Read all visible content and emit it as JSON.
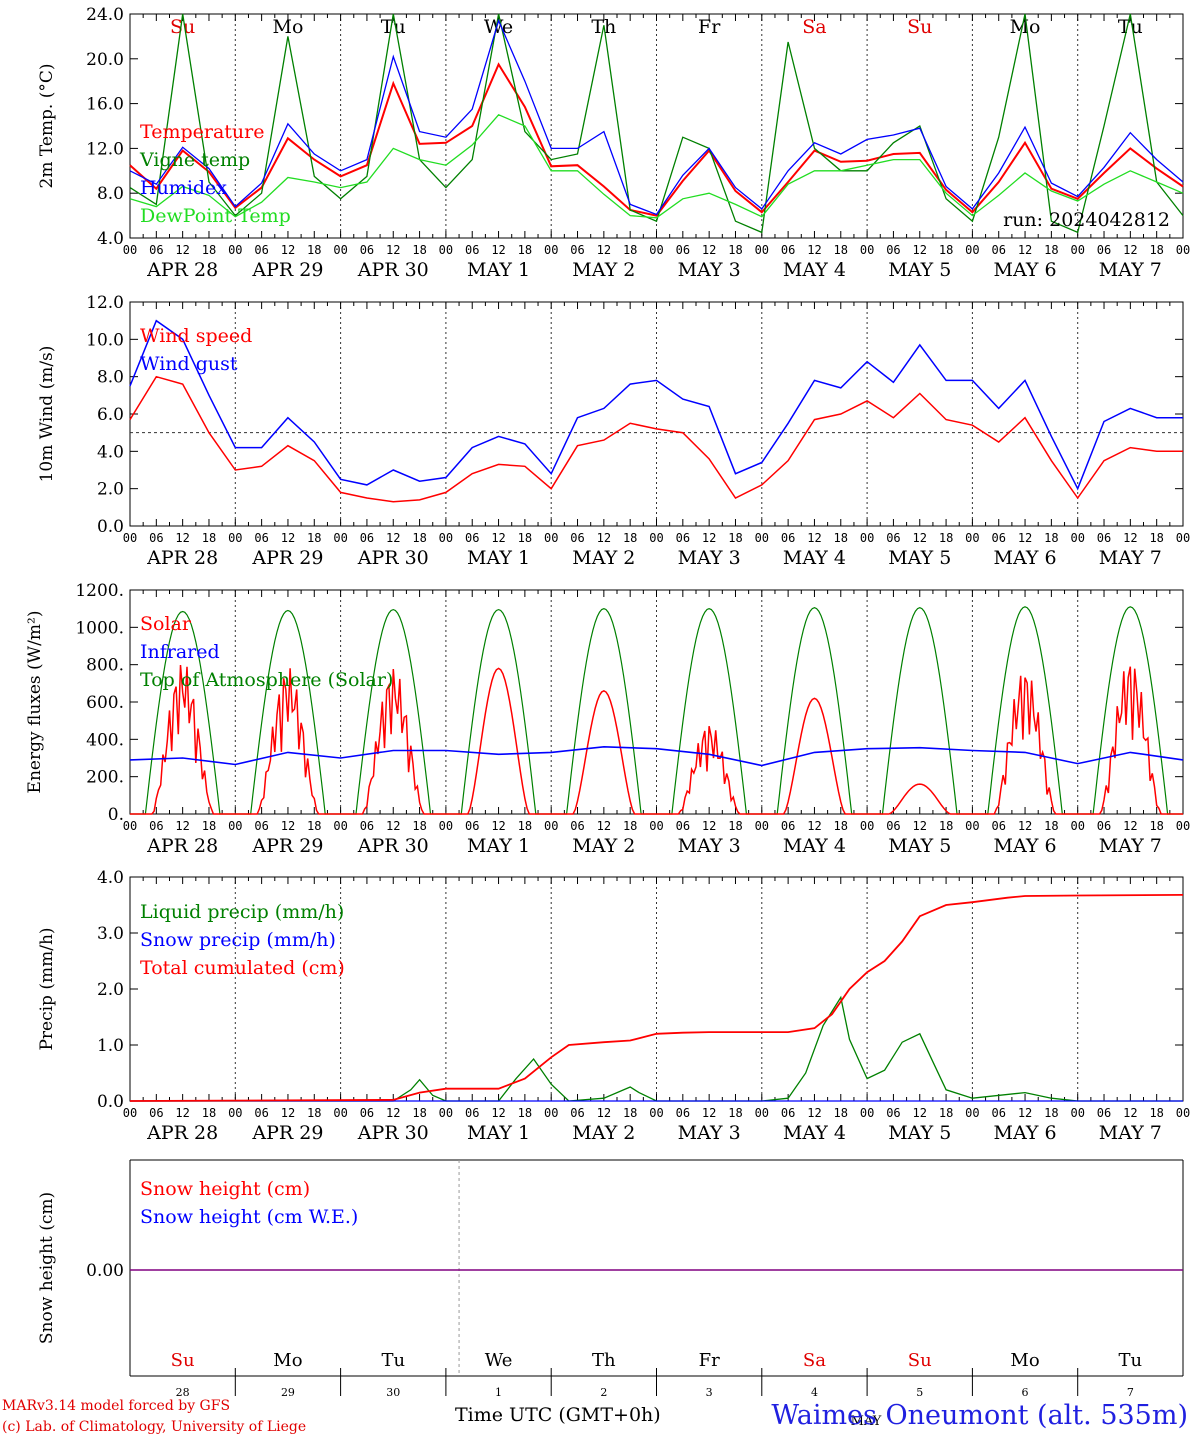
{
  "footer": {
    "model": "MARv3.14 model forced by GFS",
    "credit": "(c) Lab. of Climatology, University of Liege",
    "time_axis": "Time UTC (GMT+0h)",
    "station": "Waimes Oneumont (alt. 535m)"
  },
  "colors": {
    "red": "#ff0000",
    "green": "#008000",
    "blue": "#0000ff",
    "lightgreen": "#22dd22",
    "purple": "#800080"
  },
  "days": {
    "weekdays": [
      "Su",
      "Mo",
      "Tu",
      "We",
      "Th",
      "Fr",
      "Sa",
      "Su",
      "Mo",
      "Tu"
    ],
    "weekend_flags": [
      true,
      false,
      false,
      false,
      false,
      false,
      true,
      true,
      false,
      false
    ],
    "dates": [
      "APR 28",
      "APR 29",
      "APR 30",
      "MAY  1",
      "MAY  2",
      "MAY  3",
      "MAY  4",
      "MAY  5",
      "MAY  6",
      "MAY  7"
    ],
    "day_numbers": [
      "28",
      "29",
      "30",
      "1",
      "2",
      "3",
      "4",
      "5",
      "6",
      "7"
    ],
    "hour_ticks": [
      "00",
      "06",
      "12",
      "18"
    ],
    "final_tick": "00",
    "month_label": "MAY"
  },
  "chart_data": [
    {
      "type": "line",
      "ylabel": "2m Temp. (°C)",
      "ylim": [
        4.0,
        24.0
      ],
      "yticks": [
        "4.0",
        "8.0",
        "12.0",
        "16.0",
        "20.0",
        "24.0"
      ],
      "x_unit": "hours since APR 28 00 UTC",
      "annotation": "run: 2024042812",
      "grid": "dotted vertical at midnight",
      "series": [
        {
          "name": "Temperature",
          "color": "red",
          "x": [
            0,
            6,
            12,
            18,
            24,
            30,
            36,
            42,
            48,
            54,
            60,
            66,
            72,
            78,
            84,
            90,
            96,
            102,
            108,
            114,
            120,
            126,
            132,
            138,
            144,
            150,
            156,
            162,
            168,
            174,
            180,
            186,
            192,
            198,
            204,
            210,
            216,
            222,
            228,
            234,
            240
          ],
          "values": [
            10.5,
            8.4,
            11.8,
            9.9,
            6.7,
            8.5,
            12.9,
            11.0,
            9.5,
            10.5,
            17.8,
            12.4,
            12.5,
            14.0,
            19.5,
            15.7,
            10.4,
            10.5,
            8.6,
            6.5,
            6.0,
            9.1,
            11.8,
            8.2,
            6.3,
            9.0,
            11.8,
            10.8,
            10.9,
            11.5,
            11.6,
            8.3,
            6.3,
            9.0,
            12.5,
            8.4,
            7.5,
            9.8,
            12.0,
            10.2,
            8.6
          ]
        },
        {
          "name": "Vigne temp",
          "color": "green",
          "x": [
            0,
            6,
            12,
            18,
            24,
            30,
            36,
            42,
            48,
            54,
            60,
            66,
            72,
            78,
            84,
            90,
            96,
            102,
            108,
            114,
            120,
            126,
            132,
            138,
            144,
            150,
            156,
            162,
            168,
            174,
            180,
            186,
            192,
            198,
            204,
            210,
            216,
            222,
            228,
            234,
            240
          ],
          "values": [
            8.5,
            7.0,
            24.0,
            9.0,
            6.0,
            8.0,
            22.0,
            9.5,
            7.5,
            9.5,
            24.0,
            11.0,
            8.5,
            11.0,
            24.0,
            13.5,
            11.0,
            11.5,
            23.0,
            6.5,
            5.5,
            13.0,
            12.0,
            5.5,
            4.5,
            21.5,
            12.0,
            10.0,
            10.0,
            12.5,
            14.0,
            7.5,
            5.5,
            13.0,
            24.0,
            5.5,
            4.5,
            14.0,
            24.0,
            9.0,
            6.0
          ]
        },
        {
          "name": "Humidex",
          "color": "blue",
          "x": [
            0,
            6,
            12,
            18,
            24,
            30,
            36,
            42,
            48,
            54,
            60,
            66,
            72,
            78,
            84,
            90,
            96,
            102,
            108,
            114,
            120,
            126,
            132,
            138,
            144,
            150,
            156,
            162,
            168,
            174,
            180,
            186,
            192,
            198,
            204,
            210,
            216,
            222,
            228,
            234,
            240
          ],
          "values": [
            10.0,
            8.8,
            12.1,
            10.2,
            6.8,
            8.9,
            14.2,
            11.5,
            10.0,
            11.0,
            20.2,
            13.5,
            13.0,
            15.5,
            23.4,
            18.0,
            12.0,
            12.0,
            13.5,
            7.0,
            6.1,
            9.6,
            12.0,
            8.5,
            6.6,
            10.0,
            12.5,
            11.5,
            12.8,
            13.2,
            13.8,
            8.6,
            6.6,
            9.8,
            13.9,
            8.9,
            7.7,
            10.3,
            13.4,
            11.0,
            9.0
          ]
        },
        {
          "name": "DewPoint Temp",
          "color": "lightgreen",
          "x": [
            0,
            6,
            12,
            18,
            24,
            30,
            36,
            42,
            48,
            54,
            60,
            66,
            72,
            78,
            84,
            90,
            96,
            102,
            108,
            114,
            120,
            126,
            132,
            138,
            144,
            150,
            156,
            162,
            168,
            174,
            180,
            186,
            192,
            198,
            204,
            210,
            216,
            222,
            228,
            234,
            240
          ],
          "values": [
            7.5,
            6.8,
            8.6,
            7.8,
            5.9,
            7.2,
            9.4,
            9.0,
            8.5,
            9.0,
            12.0,
            11.0,
            10.5,
            12.3,
            15.0,
            14.0,
            10.0,
            10.0,
            7.9,
            6.0,
            5.8,
            7.5,
            8.0,
            7.0,
            5.9,
            8.8,
            10.0,
            10.0,
            10.5,
            11.0,
            11.0,
            8.0,
            6.0,
            7.8,
            9.8,
            8.2,
            7.3,
            8.8,
            10.0,
            9.0,
            8.0
          ]
        }
      ]
    },
    {
      "type": "line",
      "ylabel": "10m Wind (m/s)",
      "ylim": [
        0.0,
        12.0
      ],
      "yticks": [
        "0.0",
        "2.0",
        "4.0",
        "6.0",
        "8.0",
        "10.0",
        "12.0"
      ],
      "x_unit": "hours since APR 28 00 UTC",
      "reference_line": 5.0,
      "series": [
        {
          "name": "Wind speed",
          "color": "red",
          "x": [
            0,
            6,
            12,
            18,
            24,
            30,
            36,
            42,
            48,
            54,
            60,
            66,
            72,
            78,
            84,
            90,
            96,
            102,
            108,
            114,
            120,
            126,
            132,
            138,
            144,
            150,
            156,
            162,
            168,
            174,
            180,
            186,
            192,
            198,
            204,
            210,
            216,
            222,
            228,
            234,
            240
          ],
          "values": [
            5.7,
            8.0,
            7.6,
            5.0,
            3.0,
            3.2,
            4.3,
            3.5,
            1.8,
            1.5,
            1.3,
            1.4,
            1.8,
            2.8,
            3.3,
            3.2,
            2.0,
            4.3,
            4.6,
            5.5,
            5.2,
            5.0,
            3.6,
            1.5,
            2.2,
            3.5,
            5.7,
            6.0,
            6.7,
            5.8,
            7.1,
            5.7,
            5.4,
            4.5,
            5.8,
            3.5,
            1.5,
            3.5,
            4.2,
            4.0,
            4.0
          ]
        },
        {
          "name": "Wind gust",
          "color": "blue",
          "x": [
            0,
            6,
            12,
            18,
            24,
            30,
            36,
            42,
            48,
            54,
            60,
            66,
            72,
            78,
            84,
            90,
            96,
            102,
            108,
            114,
            120,
            126,
            132,
            138,
            144,
            150,
            156,
            162,
            168,
            174,
            180,
            186,
            192,
            198,
            204,
            210,
            216,
            222,
            228,
            234,
            240
          ],
          "values": [
            7.5,
            11.0,
            10.0,
            7.0,
            4.2,
            4.2,
            5.8,
            4.5,
            2.5,
            2.2,
            3.0,
            2.4,
            2.6,
            4.2,
            4.8,
            4.4,
            2.8,
            5.8,
            6.3,
            7.6,
            7.8,
            6.8,
            6.4,
            2.8,
            3.4,
            5.5,
            7.8,
            7.4,
            8.8,
            7.7,
            9.7,
            7.8,
            7.8,
            6.3,
            7.8,
            4.8,
            2.0,
            5.6,
            6.3,
            5.8,
            5.8
          ]
        }
      ]
    },
    {
      "type": "line",
      "ylabel": "Energy fluxes (W/m²)",
      "ylim": [
        0,
        1200
      ],
      "yticks": [
        "0.",
        "200.",
        "400.",
        "600.",
        "800.",
        "1000.",
        "1200."
      ],
      "x_unit": "hours since APR 28 00 UTC",
      "series": [
        {
          "name": "Solar",
          "color": "red",
          "day_peaks": [
            820,
            790,
            790,
            780,
            660,
            490,
            620,
            160,
            790,
            840
          ],
          "day_noisy": [
            true,
            true,
            true,
            false,
            false,
            true,
            false,
            false,
            true,
            true
          ]
        },
        {
          "name": "Infrared",
          "color": "blue",
          "x": [
            0,
            12,
            24,
            36,
            48,
            60,
            72,
            84,
            96,
            108,
            120,
            132,
            144,
            156,
            168,
            180,
            192,
            204,
            216,
            228,
            240
          ],
          "values": [
            290,
            300,
            265,
            330,
            300,
            340,
            340,
            320,
            330,
            360,
            350,
            320,
            260,
            330,
            350,
            355,
            340,
            330,
            270,
            330,
            290
          ]
        },
        {
          "name": "Top of Atmosphere (Solar)",
          "color": "green",
          "day_peaks": [
            1085,
            1090,
            1095,
            1095,
            1100,
            1100,
            1105,
            1105,
            1110,
            1110
          ]
        }
      ]
    },
    {
      "type": "line",
      "ylabel": "Precip (mm/h)",
      "ylim": [
        0.0,
        4.0
      ],
      "yticks": [
        "0.0",
        "1.0",
        "2.0",
        "3.0",
        "4.0"
      ],
      "x_unit": "hours since APR 28 00 UTC",
      "series": [
        {
          "name": "Liquid precip (mm/h)",
          "color": "green",
          "x": [
            0,
            60,
            64,
            66,
            69,
            72,
            84,
            88,
            92,
            96,
            100,
            108,
            114,
            116,
            120,
            126,
            132,
            138,
            144,
            150,
            154,
            158,
            162,
            164,
            168,
            172,
            176,
            180,
            183,
            186,
            192,
            204,
            210,
            216,
            228,
            240
          ],
          "values": [
            0,
            0,
            0.2,
            0.38,
            0.1,
            0,
            0,
            0.4,
            0.75,
            0.3,
            0,
            0.05,
            0.25,
            0.15,
            0,
            0,
            0,
            0,
            0,
            0.05,
            0.5,
            1.35,
            1.85,
            1.1,
            0.4,
            0.55,
            1.05,
            1.2,
            0.7,
            0.2,
            0.05,
            0.15,
            0.05,
            0,
            0,
            0
          ]
        },
        {
          "name": "Snow precip (mm/h)",
          "color": "blue",
          "x": [
            0,
            240
          ],
          "values": [
            0,
            0
          ]
        },
        {
          "name": "Total cumulated (cm)",
          "color": "red",
          "x": [
            0,
            60,
            66,
            72,
            84,
            90,
            96,
            100,
            108,
            114,
            120,
            126,
            132,
            138,
            144,
            150,
            156,
            160,
            164,
            168,
            172,
            176,
            180,
            186,
            192,
            200,
            204,
            216,
            240
          ],
          "values": [
            0,
            0.02,
            0.15,
            0.22,
            0.22,
            0.4,
            0.78,
            1.0,
            1.05,
            1.08,
            1.2,
            1.22,
            1.23,
            1.23,
            1.23,
            1.23,
            1.3,
            1.55,
            2.0,
            2.3,
            2.5,
            2.85,
            3.3,
            3.5,
            3.55,
            3.63,
            3.66,
            3.67,
            3.68
          ]
        }
      ]
    },
    {
      "type": "line",
      "ylabel": "Snow height (cm)",
      "yticks": [
        "0.00"
      ],
      "x_unit": "hours since APR 28 00 UTC",
      "series": [
        {
          "name": "Snow height (cm)",
          "color": "red",
          "x": [
            0,
            240
          ],
          "values": [
            0,
            0
          ]
        },
        {
          "name": "Snow height (cm W.E.)",
          "color": "blue",
          "x": [
            0,
            240
          ],
          "values": [
            0,
            0
          ]
        }
      ]
    }
  ]
}
